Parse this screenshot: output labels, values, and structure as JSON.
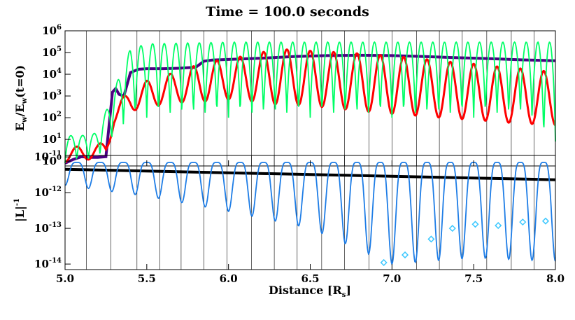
{
  "title": "Time = 100.0 seconds",
  "xlabel": "Distance [R",
  "xlabel_sub": "s",
  "xlabel_close": "]",
  "colors": {
    "purple": "#4b0082",
    "red": "#ff0000",
    "green": "#00ff66",
    "blue": "#1e7de6",
    "cyan": "#3cc8ff",
    "black": "#000000"
  },
  "chart_data": [
    {
      "type": "line",
      "panel": "top",
      "ylabel_parts": [
        "E",
        "w",
        "/E",
        "w",
        "(t=0)"
      ],
      "xlim": [
        5.0,
        8.0
      ],
      "ylim": [
        0.6,
        1000000
      ],
      "yscale": "log",
      "xticks": [
        "5.0",
        "5.5",
        "6.0",
        "6.5",
        "7.0",
        "7.5",
        "8.0"
      ],
      "yticks_exp": [
        "0",
        "1",
        "2",
        "3",
        "4",
        "5",
        "6"
      ],
      "vertical_lines": [
        5.13,
        5.28,
        5.44,
        5.58,
        5.71,
        5.85,
        5.99,
        6.14,
        6.28,
        6.42,
        6.57,
        6.71,
        6.86,
        7.0,
        7.15,
        7.29,
        7.43,
        7.58,
        7.73,
        7.87
      ],
      "series": [
        {
          "color": "purple",
          "x": [
            5.0,
            5.05,
            5.1,
            5.15,
            5.2,
            5.25,
            5.27,
            5.29,
            5.31,
            5.33,
            5.36,
            5.4,
            5.45,
            5.5,
            5.6,
            5.7,
            5.8,
            5.85,
            5.9,
            6.0,
            6.2,
            6.4,
            6.6,
            6.8,
            7.0,
            7.2,
            7.4,
            7.6,
            7.8,
            8.0
          ],
          "y": [
            0.8,
            1.2,
            1.6,
            1.5,
            1.5,
            1.6,
            50,
            1500,
            2200,
            1200,
            1000,
            12000,
            17000,
            18000,
            18000,
            19000,
            21000,
            40000,
            45000,
            48000,
            55000,
            65000,
            72000,
            75000,
            72000,
            65000,
            58000,
            52000,
            46000,
            42000
          ]
        },
        {
          "color": "red",
          "style": "oscillating",
          "x": [
            5.0,
            5.1,
            5.2,
            5.25,
            5.3,
            5.35,
            5.4,
            5.5,
            5.6,
            5.7,
            5.8,
            5.9,
            6.0,
            6.1,
            6.2,
            6.3,
            6.4,
            6.5,
            6.6,
            6.7,
            6.8,
            6.9,
            7.0,
            7.1,
            7.2,
            7.3,
            7.4,
            7.5,
            7.6,
            7.7,
            7.8,
            7.9,
            8.0
          ],
          "y_min": [
            0.9,
            1.1,
            1.3,
            1.5,
            50,
            150,
            200,
            300,
            400,
            500,
            500,
            600,
            700,
            600,
            500,
            400,
            400,
            350,
            300,
            250,
            200,
            180,
            150,
            130,
            120,
            100,
            90,
            80,
            70,
            60,
            55,
            50,
            45
          ],
          "y_max": [
            4,
            5,
            6,
            8,
            200,
            800,
            2000,
            5000,
            8000,
            15000,
            25000,
            40000,
            50000,
            70000,
            100000,
            150000,
            130000,
            120000,
            110000,
            100000,
            90000,
            80000,
            70000,
            60000,
            50000,
            40000,
            35000,
            30000,
            25000,
            20000,
            18000,
            15000,
            12000
          ],
          "cycles": 21
        },
        {
          "color": "green",
          "style": "oscillating",
          "x": [
            5.0,
            5.1,
            5.2,
            5.3,
            5.4,
            5.5,
            6.0,
            6.5,
            7.0,
            7.5,
            7.85,
            7.9,
            8.0
          ],
          "y_min": [
            0.8,
            1.0,
            1.2,
            10,
            80,
            100,
            100,
            100,
            100,
            100,
            100,
            8,
            8
          ],
          "y_max": [
            15,
            15,
            20,
            2000,
            150000,
            250000,
            300000,
            300000,
            300000,
            300000,
            300000,
            300000,
            300000
          ],
          "cycles": 42
        }
      ]
    },
    {
      "type": "line",
      "panel": "bottom",
      "ylabel_parts": [
        "|L|",
        "-1"
      ],
      "xlim": [
        5.0,
        8.0
      ],
      "ylim": [
        7e-15,
        1.1e-11
      ],
      "yscale": "log",
      "ytick_values": [
        "10",
        "10",
        "10",
        "10"
      ],
      "yticks_exp": [
        "-11",
        "-12",
        "-13",
        "-14"
      ],
      "vertical_lines": [
        5.13,
        5.28,
        5.44,
        5.58,
        5.71,
        5.85,
        5.99,
        6.14,
        6.28,
        6.42,
        6.57,
        6.71,
        6.86,
        7.0,
        7.15,
        7.29,
        7.43,
        7.58,
        7.73,
        7.87
      ],
      "series": [
        {
          "color": "black",
          "x": [
            5.0,
            8.0
          ],
          "y": [
            4.5e-12,
            2.3e-12
          ]
        },
        {
          "color": "blue",
          "style": "oscillating",
          "x": [
            5.0,
            5.5,
            6.0,
            6.5,
            7.0,
            7.5,
            8.0
          ],
          "y_max": [
            7e-12,
            7e-12,
            7e-12,
            7e-12,
            7e-12,
            7e-12,
            7e-12
          ],
          "y_min": [
            1.6e-12,
            8e-13,
            3e-13,
            1e-13,
            1e-14,
            1.5e-14,
            1.2e-14
          ],
          "cycles": 21
        },
        {
          "color": "cyan",
          "style": "diamonds",
          "x": [
            6.95,
            7.08,
            7.24,
            7.37,
            7.51,
            7.65,
            7.8,
            7.94
          ],
          "y": [
            1.1e-14,
            1.8e-14,
            5e-14,
            1e-13,
            1.3e-13,
            1.2e-13,
            1.5e-13,
            1.6e-13
          ]
        }
      ]
    }
  ]
}
